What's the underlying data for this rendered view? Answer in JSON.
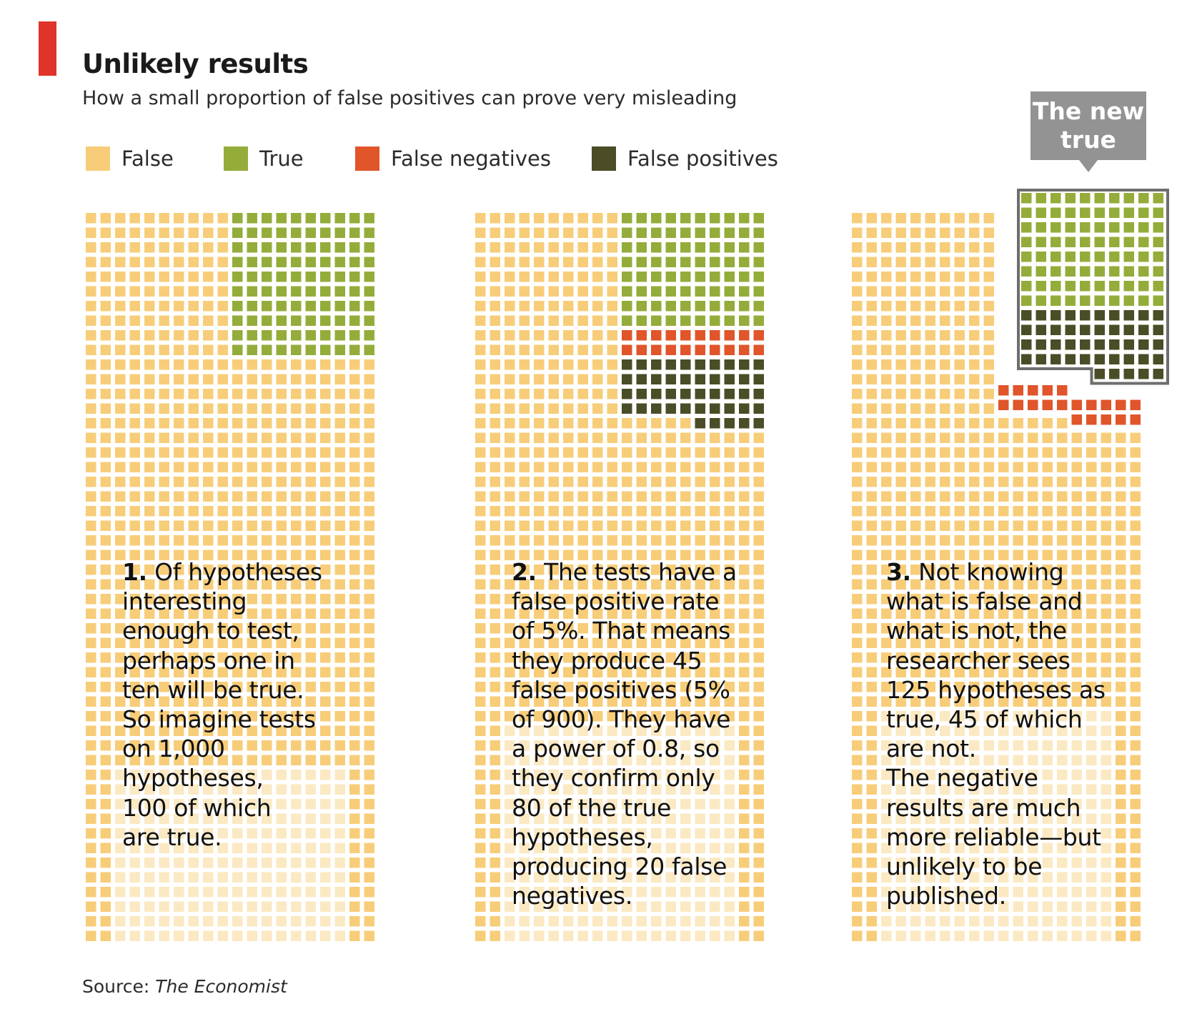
{
  "title": "Unlikely results",
  "subtitle": "How a small proportion of false positives can prove very misleading",
  "legend": [
    {
      "label": "False",
      "color": "#f7cd79"
    },
    {
      "label": "True",
      "color": "#94ac3a"
    },
    {
      "label": "False negatives",
      "color": "#e0552a"
    },
    {
      "label": "False positives",
      "color": "#4a4d26"
    }
  ],
  "callout": {
    "line1": "The new",
    "line2": "true"
  },
  "panels": [
    {
      "num": "1.",
      "lines": [
        "Of hypotheses",
        "interesting",
        "enough to test,",
        "perhaps one in",
        "ten will be true.",
        "So imagine tests",
        "on 1,000",
        "hypotheses,",
        "100 of which",
        "are true."
      ]
    },
    {
      "num": "2.",
      "lines": [
        "The tests have a",
        "false positive rate",
        "of 5%. That means",
        "they produce 45",
        "false positives (5%",
        "of 900). They have",
        "a power of 0.8, so",
        "they confirm only",
        "80 of the true",
        "hypotheses,",
        "producing 20 false",
        "negatives."
      ]
    },
    {
      "num": "3.",
      "lines": [
        "Not knowing",
        "what is false and",
        "what is not, the",
        "researcher sees",
        "125 hypotheses as",
        "true, 45 of which",
        "are not.",
        "The negative",
        "results are much",
        "more reliable—but",
        "unlikely to be",
        "published."
      ]
    }
  ],
  "source": {
    "prefix": "Source: ",
    "name": "The Economist"
  },
  "chart_data": {
    "type": "waffle",
    "total_per_panel": 1000,
    "panels": [
      {
        "panel": 1,
        "false": 900,
        "true": 100,
        "false_negatives": 0,
        "false_positives": 0
      },
      {
        "panel": 2,
        "false": 855,
        "true": 80,
        "false_negatives": 20,
        "false_positives": 45
      },
      {
        "panel": 3,
        "false": 855,
        "true": 80,
        "false_negatives": 20,
        "false_positives": 45,
        "seen_as_true": 125
      }
    ],
    "colors": {
      "false": "#f7cd79",
      "true": "#94ac3a",
      "false_negatives": "#e0552a",
      "false_positives": "#4a4d26"
    }
  }
}
